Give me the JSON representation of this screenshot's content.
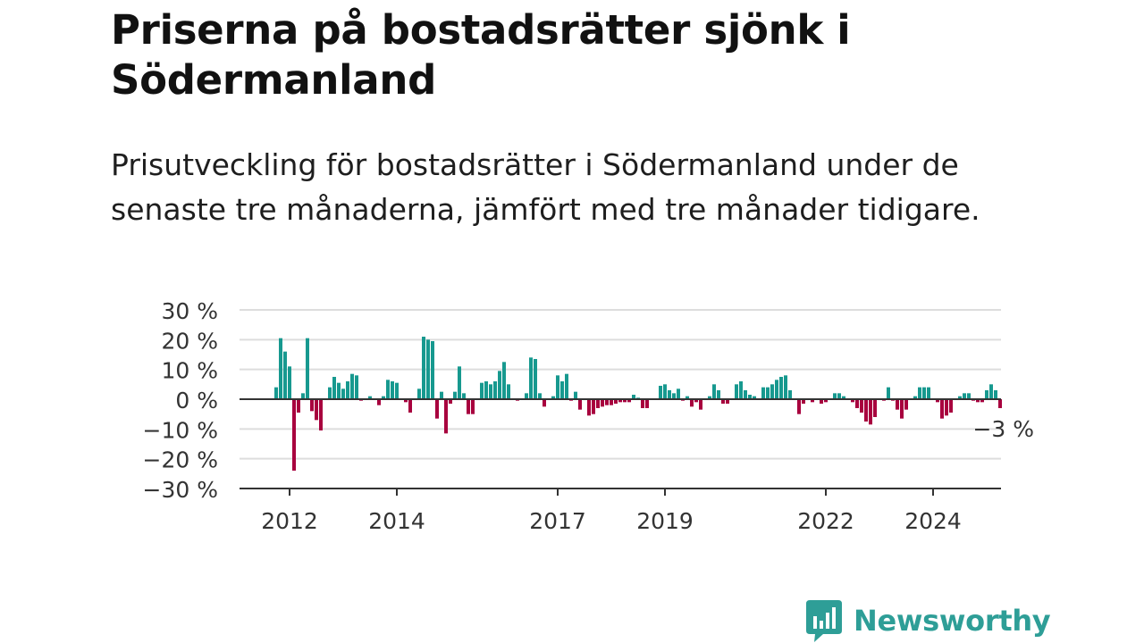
{
  "title": "Priserna på bostadsrätter sjönk i Södermanland",
  "subtitle": "Prisutveckling för bostadsrätter i Södermanland under de senaste tre månaderna, jämfört med tre månader tidigare.",
  "brand": {
    "name": "Newsworthy",
    "icon": "newsworthy-logo-icon",
    "color": "#2e9e97"
  },
  "colors": {
    "positive": "#17998f",
    "negative": "#a8003e",
    "grid": "#dddddd",
    "axis": "#333333"
  },
  "chart_data": {
    "type": "bar",
    "title": "",
    "xlabel": "",
    "ylabel": "",
    "ylim": [
      -30,
      30
    ],
    "yticks": [
      30,
      20,
      10,
      0,
      -10,
      -20,
      -30
    ],
    "ytick_labels": [
      "30 %",
      "20 %",
      "10 %",
      "0 %",
      "−10 %",
      "−20 %",
      "−30 %"
    ],
    "xtick_labels": [
      "2012",
      "2014",
      "2017",
      "2019",
      "2022",
      "2024"
    ],
    "x_unit": "month",
    "start": "2011-10",
    "x_ticks": [
      "2012-01",
      "2014-01",
      "2017-01",
      "2019-01",
      "2022-01",
      "2024-01"
    ],
    "annotation": {
      "text": "−3 %",
      "x": "2025-05"
    },
    "grid": true,
    "series": [
      {
        "values": [
          4,
          20.5,
          16,
          11,
          -24,
          -4.5,
          2,
          20.5,
          -4,
          -7,
          -10.5,
          0,
          4,
          7.5,
          5.5,
          3.5,
          6,
          8.5,
          8,
          -0.5,
          0,
          1,
          0,
          -2,
          1,
          6.5,
          6,
          5.5,
          0,
          -1,
          -4.5,
          0,
          3.5,
          21,
          20,
          19.5,
          -6.5,
          2.5,
          -11.5,
          -1.5,
          2.5,
          11,
          2,
          -5,
          -5,
          0,
          5.5,
          6,
          5,
          6,
          9.5,
          12.5,
          5,
          0,
          -0.5,
          0,
          2,
          14,
          13.5,
          2,
          -2.5,
          0,
          1,
          8,
          6,
          8.5,
          -0.5,
          2.5,
          -3.5,
          0,
          -5.5,
          -5,
          -3,
          -2.5,
          -2,
          -2,
          -1.5,
          -1,
          -1,
          -1,
          1.5,
          0.5,
          -3,
          -3,
          0,
          0,
          4.5,
          5,
          3,
          2,
          3.5,
          -0.5,
          1,
          -2.5,
          -1,
          -3.5,
          0,
          1,
          5,
          3,
          -1.5,
          -1.5,
          0,
          5,
          6,
          3,
          1.5,
          1,
          0,
          4,
          4,
          5,
          6.5,
          7.5,
          8,
          3,
          0,
          -5,
          -1.5,
          0,
          -1,
          0,
          -1.5,
          -1,
          0,
          2,
          2,
          1,
          0,
          -1,
          -3,
          -4.5,
          -7.5,
          -8.5,
          -6,
          0,
          -0.5,
          4,
          -0.5,
          -3.5,
          -6.5,
          -3.5,
          0,
          1,
          4,
          4,
          4,
          0,
          -1,
          -6.5,
          -5.5,
          -4.5,
          0,
          1,
          2,
          2,
          -0.5,
          -1,
          -1,
          3,
          5,
          3,
          -3
        ]
      }
    ]
  }
}
